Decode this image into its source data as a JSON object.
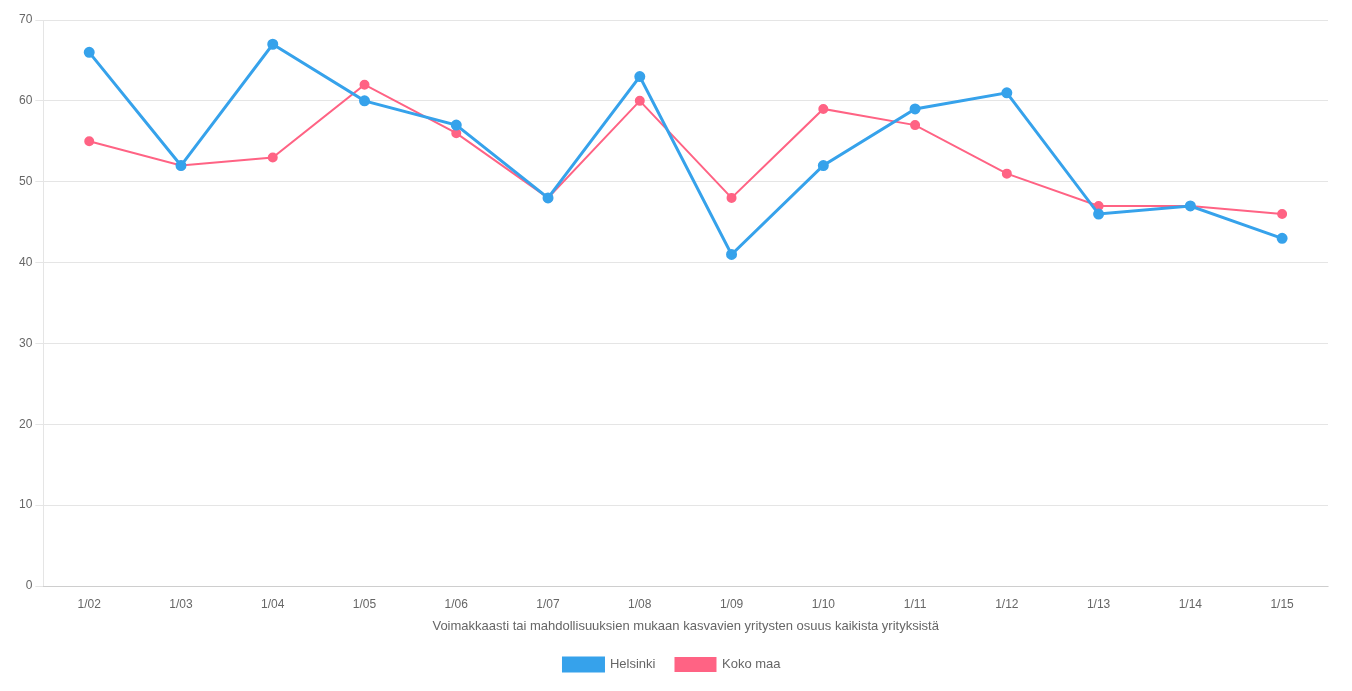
{
  "chart_data": {
    "type": "line",
    "xlabel": "Voimakkaasti tai mahdollisuuksien mukaan kasvavien yritysten osuus kaikista yrityksistä",
    "categories": [
      "1/02",
      "1/03",
      "1/04",
      "1/05",
      "1/06",
      "1/07",
      "1/08",
      "1/09",
      "1/10",
      "1/11",
      "1/12",
      "1/13",
      "1/14",
      "1/15"
    ],
    "series": [
      {
        "name": "Helsinki",
        "values": [
          66,
          52,
          67,
          60,
          57,
          48,
          63,
          41,
          52,
          59,
          61,
          46,
          47,
          43
        ],
        "marker": "circle"
      },
      {
        "name": "Koko maa",
        "values": [
          55,
          52,
          53,
          62,
          56,
          48,
          60,
          48,
          59,
          57,
          51,
          47,
          47,
          46
        ],
        "marker": "circle"
      }
    ],
    "ylim": [
      0,
      70
    ],
    "yticks": [
      0,
      10,
      20,
      30,
      40,
      50,
      60,
      70
    ],
    "grid": "y",
    "legend": "bottom"
  }
}
